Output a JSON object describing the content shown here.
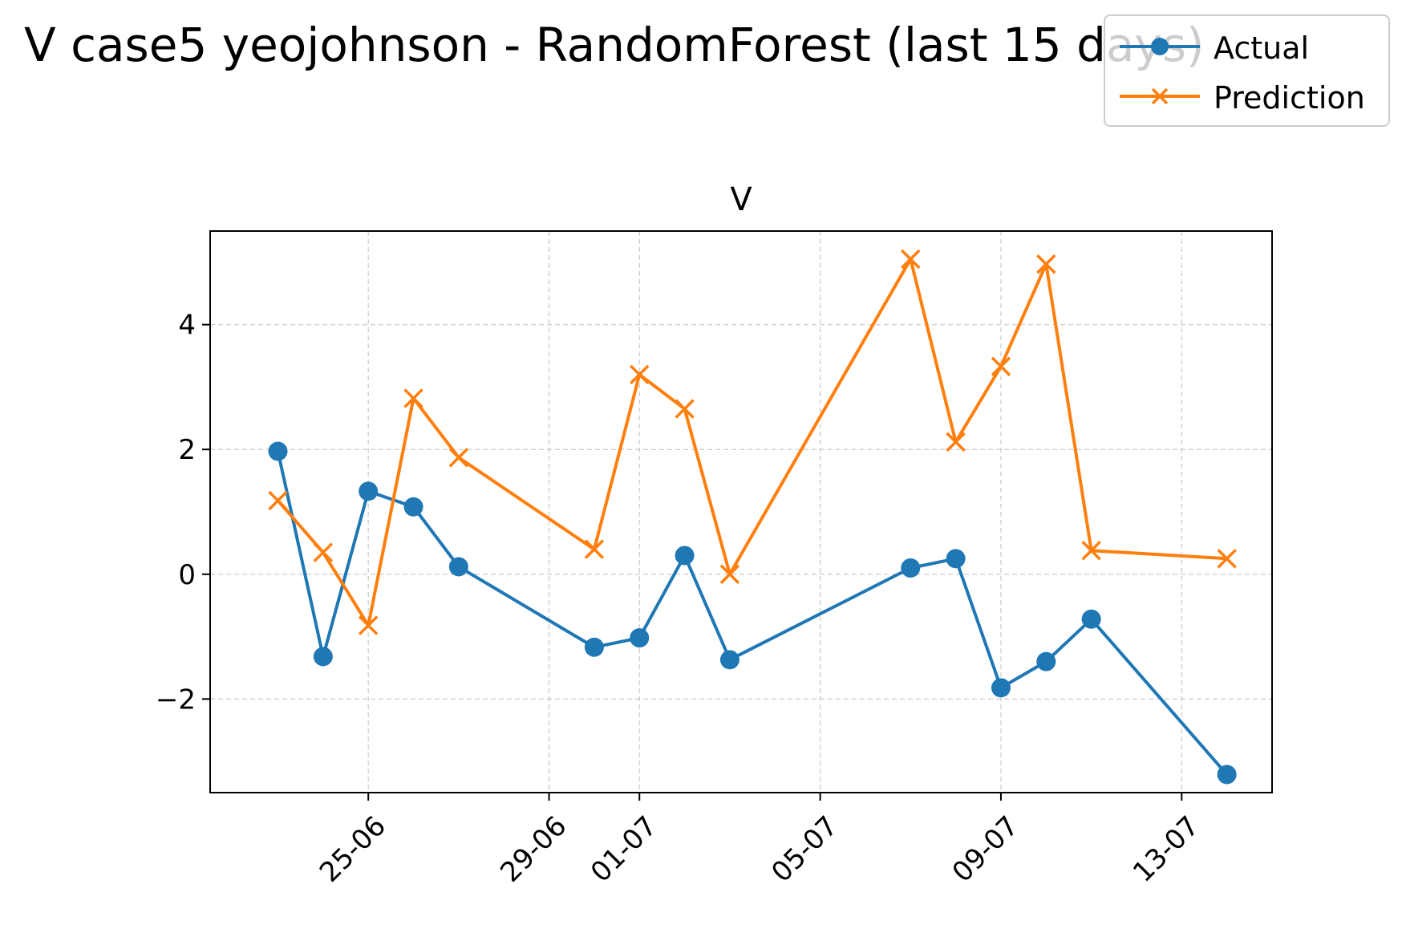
{
  "figure": {
    "suptitle": "V case5 yeojohnson - RandomForest (last 15 days)"
  },
  "chart_data": {
    "type": "line",
    "title": "V",
    "xlabel": "",
    "ylabel": "",
    "x_tick_labels": [
      "25-06",
      "29-06",
      "01-07",
      "05-07",
      "09-07",
      "13-07"
    ],
    "x_tick_dates": [
      "2025-06-25",
      "2025-06-29",
      "2025-07-01",
      "2025-07-05",
      "2025-07-09",
      "2025-07-13"
    ],
    "y_ticks": [
      -2,
      0,
      2,
      4
    ],
    "y_tick_labels": [
      "−2",
      "0",
      "2",
      "4"
    ],
    "xlim": [
      "2025-06-21T12:00",
      "2025-07-15T00:00"
    ],
    "ylim": [
      -3.5,
      5.5
    ],
    "grid": true,
    "legend_position": "top-right",
    "x": [
      "2025-06-23",
      "2025-06-24",
      "2025-06-25",
      "2025-06-26",
      "2025-06-27",
      "2025-06-30",
      "2025-07-01",
      "2025-07-02",
      "2025-07-03",
      "2025-07-07",
      "2025-07-08",
      "2025-07-09",
      "2025-07-10",
      "2025-07-11",
      "2025-07-14"
    ],
    "series": [
      {
        "name": "Actual",
        "color": "#1f77b4",
        "marker": "circle",
        "values": [
          1.97,
          -1.32,
          1.33,
          1.08,
          0.12,
          -1.17,
          -1.02,
          0.3,
          -1.37,
          0.1,
          0.25,
          -1.82,
          -1.4,
          -0.72,
          -3.21
        ]
      },
      {
        "name": "Prediction",
        "color": "#ff7f0e",
        "marker": "x",
        "values": [
          1.18,
          0.35,
          -0.82,
          2.82,
          1.87,
          0.4,
          3.2,
          2.65,
          0.0,
          5.05,
          2.12,
          3.33,
          4.97,
          0.38,
          0.25
        ]
      }
    ]
  }
}
